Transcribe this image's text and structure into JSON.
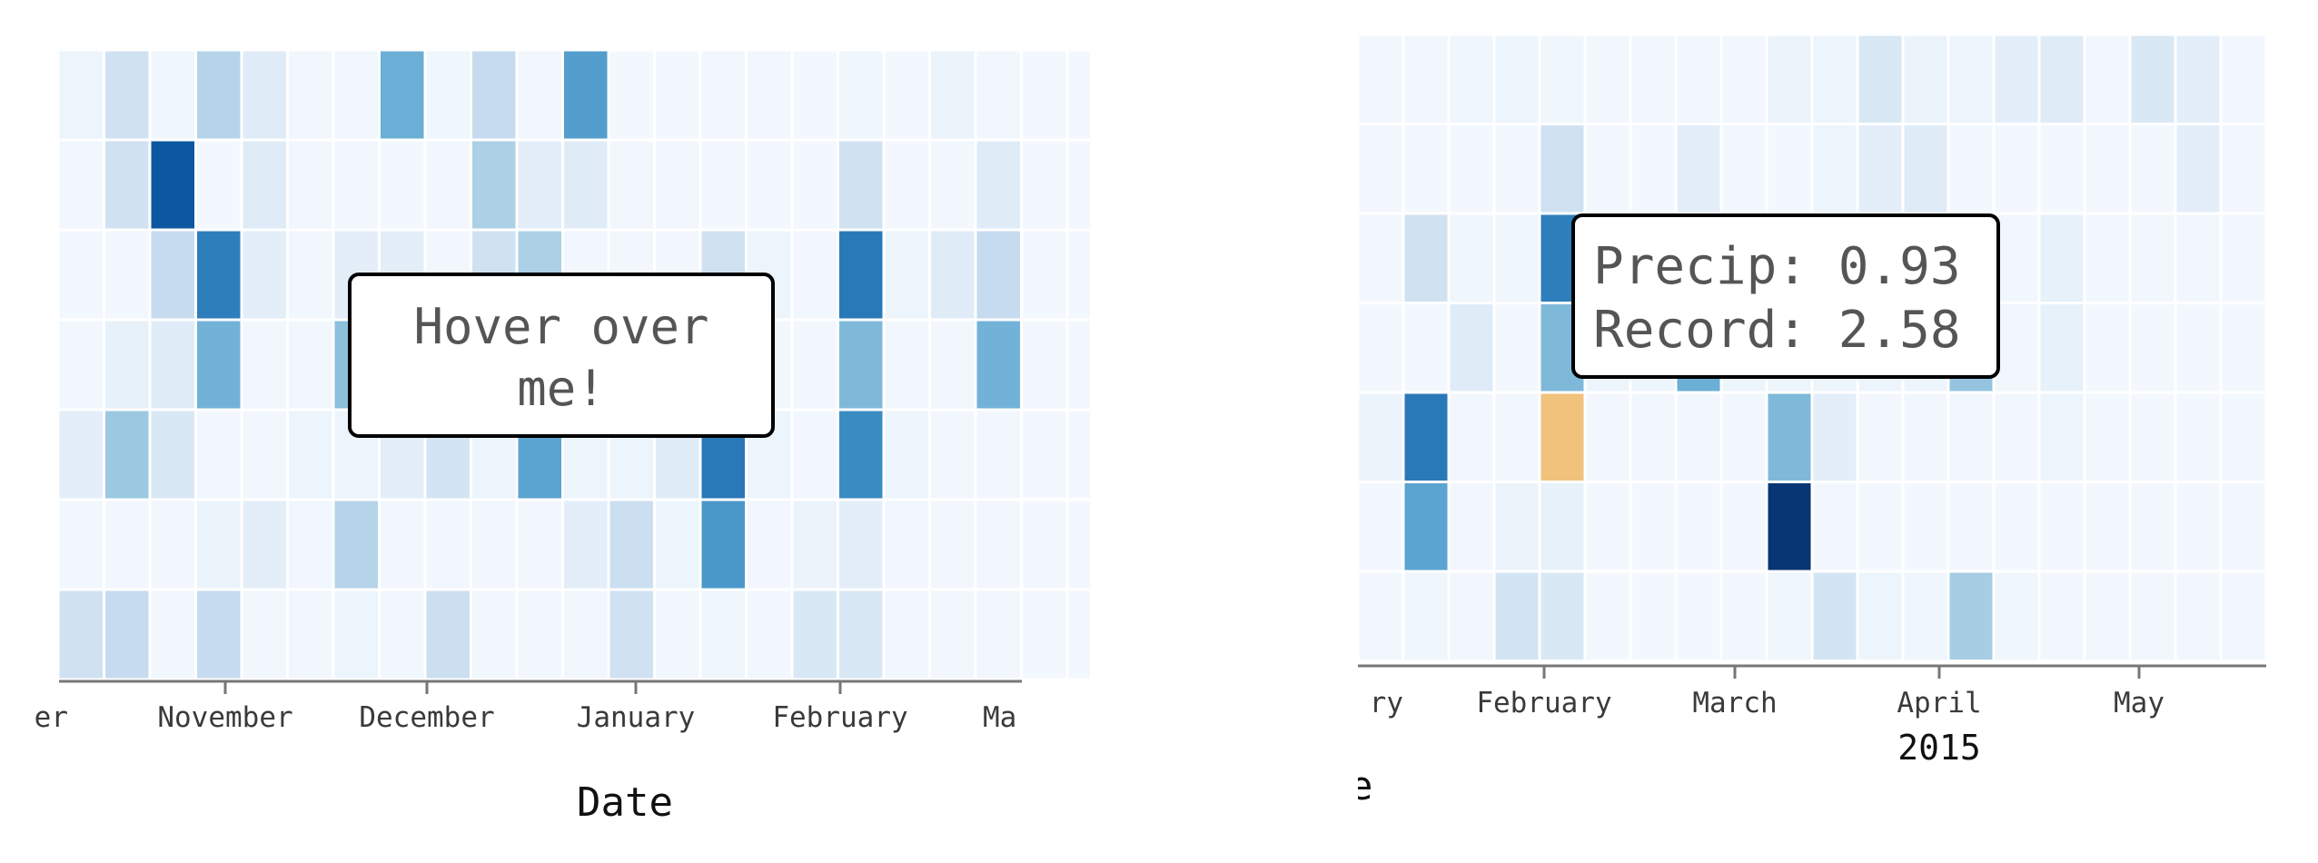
{
  "left_panel": {
    "tooltip": {
      "line1": "Hover over",
      "line2": "me!"
    },
    "x_ticks": [
      "er",
      "November",
      "December",
      "January",
      "February",
      "Ma"
    ],
    "axis_title": "Date"
  },
  "right_panel": {
    "tooltip": {
      "line1": "Precip: 0.93",
      "line2": "Record: 2.58"
    },
    "x_ticks": [
      "ry",
      "February",
      "March",
      "April",
      "May"
    ],
    "year_label": "2015",
    "axis_title_fragment": "e"
  },
  "colors": {
    "scale_low": "#f7fbff",
    "scale_high": "#08306b",
    "highlight": "#f0c27b",
    "cell_stroke": "#ffffff",
    "axis": "#777777"
  },
  "chart_data": [
    {
      "type": "heatmap",
      "xlabel": "Date",
      "x_axis": "weeks, October to March",
      "rows": 7,
      "x_ticks": [
        "er",
        "November",
        "December",
        "January",
        "February",
        "Ma"
      ],
      "intensity": [
        [
          0.05,
          0.2,
          0.04,
          0.3,
          0.12,
          0.03,
          0.03,
          0.5,
          0.04,
          0.25,
          0.03,
          0.57,
          0.02,
          0.02,
          0.03,
          0.03,
          0.02,
          0.04,
          0.02,
          0.06,
          0.03,
          0.02,
          0.02
        ],
        [
          0.03,
          0.2,
          0.85,
          0.02,
          0.12,
          0.03,
          0.03,
          0.02,
          0.03,
          0.33,
          0.1,
          0.12,
          0.03,
          0.03,
          0.02,
          0.02,
          0.02,
          0.2,
          0.02,
          0.02,
          0.12,
          0.02,
          0.02
        ],
        [
          0.02,
          0.02,
          0.25,
          0.7,
          0.1,
          0.03,
          0.1,
          0.1,
          0.03,
          0.2,
          0.33,
          0.03,
          0.03,
          0.03,
          0.2,
          0.05,
          0.03,
          0.72,
          0.05,
          0.12,
          0.25,
          0.02,
          0.02
        ],
        [
          0.03,
          0.08,
          0.12,
          0.48,
          0.03,
          0.03,
          0.42,
          0.02,
          0.03,
          0.03,
          0.03,
          0.03,
          0.03,
          0.03,
          0.03,
          0.03,
          0.03,
          0.45,
          0.03,
          0.03,
          0.48,
          0.02,
          0.02
        ],
        [
          0.1,
          0.38,
          0.15,
          0.03,
          0.03,
          0.05,
          0.05,
          0.1,
          0.18,
          0.05,
          0.55,
          0.05,
          0.05,
          0.12,
          0.72,
          0.05,
          0.03,
          0.65,
          0.05,
          0.03,
          0.03,
          0.02,
          0.02
        ],
        [
          0.03,
          0.03,
          0.03,
          0.06,
          0.1,
          0.03,
          0.3,
          0.03,
          0.03,
          0.03,
          0.03,
          0.1,
          0.22,
          0.05,
          0.6,
          0.03,
          0.06,
          0.1,
          0.03,
          0.03,
          0.03,
          0.02,
          0.02
        ],
        [
          0.2,
          0.25,
          0.03,
          0.25,
          0.03,
          0.03,
          0.05,
          0.03,
          0.22,
          0.03,
          0.03,
          0.03,
          0.2,
          0.03,
          0.04,
          0.03,
          0.15,
          0.15,
          0.03,
          0.03,
          0.03,
          0.02,
          0.02
        ]
      ]
    },
    {
      "type": "heatmap",
      "title": "",
      "x_axis": "weeks, 2015",
      "rows": 7,
      "x_ticks": [
        "ry",
        "February",
        "March",
        "April",
        "May"
      ],
      "year": "2015",
      "highlight_cell": {
        "row": 4,
        "col": 4,
        "precip": 0.93,
        "record": 2.58
      },
      "intensity": [
        [
          0.03,
          0.03,
          0.04,
          0.05,
          0.04,
          0.03,
          0.03,
          0.03,
          0.03,
          0.06,
          0.05,
          0.15,
          0.06,
          0.05,
          0.1,
          0.12,
          0.03,
          0.15,
          0.1,
          0.03
        ],
        [
          0.02,
          0.02,
          0.02,
          0.02,
          0.2,
          0.02,
          0.02,
          0.1,
          0.02,
          0.02,
          0.05,
          0.1,
          0.12,
          0.02,
          0.02,
          0.02,
          0.02,
          0.02,
          0.1,
          0.02
        ],
        [
          0.02,
          0.2,
          0.04,
          0.04,
          0.7,
          0.05,
          0.05,
          0.05,
          0.05,
          0.05,
          0.03,
          0.03,
          0.03,
          0.03,
          0.03,
          0.08,
          0.03,
          0.03,
          0.03,
          0.02
        ],
        [
          0.02,
          0.02,
          0.12,
          0.02,
          0.45,
          0.05,
          0.05,
          0.5,
          0.05,
          0.05,
          0.05,
          0.05,
          0.05,
          0.4,
          0.03,
          0.08,
          0.02,
          0.02,
          0.02,
          0.02
        ],
        [
          0.06,
          0.72,
          0.03,
          0.03,
          -1,
          0.03,
          0.03,
          0.03,
          0.03,
          0.45,
          0.1,
          0.03,
          0.03,
          0.03,
          0.03,
          0.05,
          0.02,
          0.02,
          0.02,
          0.02
        ],
        [
          0.03,
          0.55,
          0.03,
          0.06,
          0.08,
          0.02,
          0.02,
          0.02,
          0.02,
          0.98,
          0.03,
          0.02,
          0.02,
          0.02,
          0.02,
          0.02,
          0.02,
          0.02,
          0.02,
          0.02
        ],
        [
          0.03,
          0.04,
          0.03,
          0.18,
          0.15,
          0.02,
          0.02,
          0.02,
          0.03,
          0.04,
          0.18,
          0.05,
          0.04,
          0.35,
          0.04,
          0.03,
          0.03,
          0.03,
          0.03,
          0.03
        ]
      ]
    }
  ]
}
